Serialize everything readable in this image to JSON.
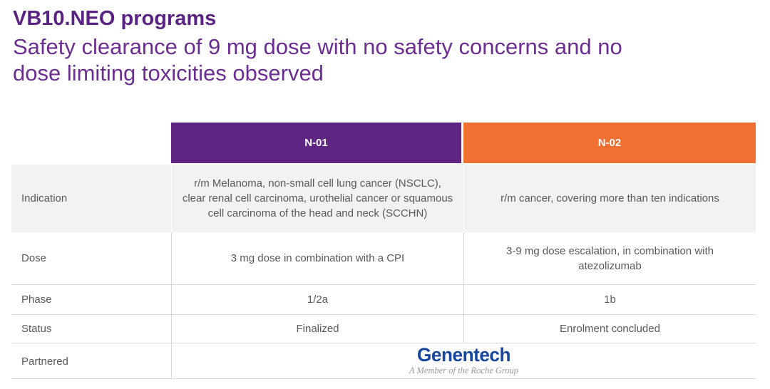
{
  "slide": {
    "title": "VB10.NEO programs",
    "subtitle_lines": [
      "Safety clearance of 9 mg dose with no safety concerns and no",
      "dose limiting toxicities observed"
    ]
  },
  "colors": {
    "title_purple": "#5a2383",
    "subtitle_purple": "#6b2d92",
    "n01_header_purple": "#5f2582",
    "n02_header_orange": "#f07032",
    "indication_row_gray": "#f2f2f2",
    "table_text_gray": "#595959",
    "border_gray": "#d9d9d9",
    "genentech_blue": "#17469e",
    "tagline_gray": "#9a9a9a"
  },
  "table": {
    "columns": [
      {
        "id": "n01",
        "label": "N-01"
      },
      {
        "id": "n02",
        "label": "N-02"
      }
    ],
    "rows": {
      "indication": {
        "label": "Indication",
        "n01": "r/m Melanoma, non-small cell lung cancer (NSCLC), clear renal cell carcinoma, urothelial cancer or squamous cell carcinoma of the head and neck (SCCHN)",
        "n02": "r/m cancer, covering more than ten indications"
      },
      "dose": {
        "label": "Dose",
        "n01": "3 mg dose in combination with a CPI",
        "n02": "3-9 mg dose escalation, in combination with atezolizumab"
      },
      "phase": {
        "label": "Phase",
        "n01": "1/2a",
        "n02": "1b"
      },
      "status": {
        "label": "Status",
        "n01": "Finalized",
        "n02": "Enrolment concluded"
      },
      "partnered": {
        "label": "Partnered",
        "partner_name": "Genentech",
        "partner_tagline": "A Member of the Roche Group"
      }
    }
  }
}
